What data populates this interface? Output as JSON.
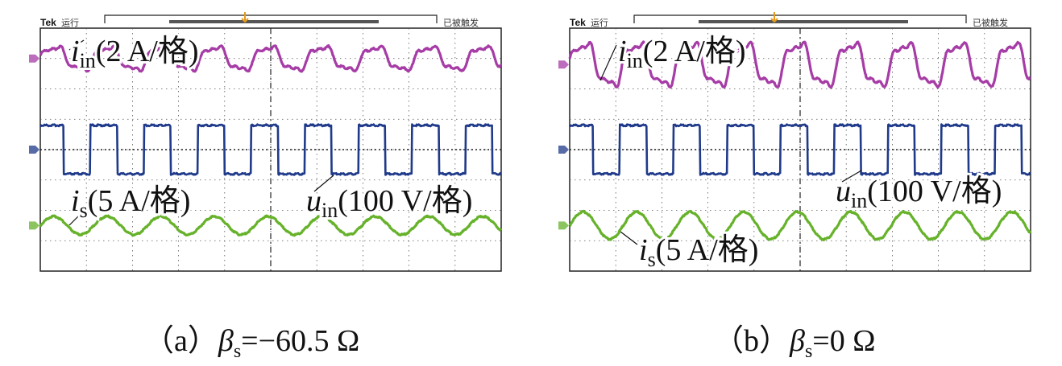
{
  "chart_data": [
    {
      "type": "line",
      "header": {
        "brand": "Tek",
        "state": "运行",
        "trigger": "已被触发"
      },
      "caption": {
        "label": "（a）",
        "symbol": "β",
        "sub": "s",
        "rest": "=−60.5 Ω"
      },
      "grid": true,
      "divisions": {
        "x": 10,
        "y": 8
      },
      "time_divisions": 10,
      "traces": [
        {
          "id": "iin",
          "name": "i",
          "sub": "in",
          "unit": "(2 A/格)",
          "color": "#a63ca6",
          "shape": "distorted-sine",
          "periods": 8.6,
          "amplitude_div": 0.5,
          "offset_div": 3
        },
        {
          "id": "uin",
          "name": "u",
          "sub": "in",
          "unit": "(100 V/格)",
          "color": "#1f3a8a",
          "shape": "square",
          "periods": 8.6,
          "amplitude_div": 0.8,
          "offset_div": 0
        },
        {
          "id": "is",
          "name": "i",
          "sub": "s",
          "unit": "(5 A/格)",
          "color": "#66b22a",
          "shape": "sine",
          "periods": 8.6,
          "amplitude_div": 0.3,
          "offset_div": -2.5
        }
      ]
    },
    {
      "type": "line",
      "header": {
        "brand": "Tek",
        "state": "运行",
        "trigger": "已被触发"
      },
      "caption": {
        "label": "（b）",
        "symbol": "β",
        "sub": "s",
        "rest": "=0 Ω"
      },
      "grid": true,
      "divisions": {
        "x": 10,
        "y": 8
      },
      "time_divisions": 10,
      "traces": [
        {
          "id": "iin",
          "name": "i",
          "sub": "in",
          "unit": "(2 A/格)",
          "color": "#a63ca6",
          "shape": "distorted-sine",
          "periods": 8.6,
          "amplitude_div": 0.9,
          "offset_div": 2.8
        },
        {
          "id": "uin",
          "name": "u",
          "sub": "in",
          "unit": "(100 V/格)",
          "color": "#1f3a8a",
          "shape": "square",
          "periods": 8.6,
          "amplitude_div": 0.8,
          "offset_div": 0
        },
        {
          "id": "is",
          "name": "i",
          "sub": "s",
          "unit": "(5 A/格)",
          "color": "#66b22a",
          "shape": "sine",
          "periods": 8.6,
          "amplitude_div": 0.45,
          "offset_div": -2.5
        }
      ]
    }
  ]
}
